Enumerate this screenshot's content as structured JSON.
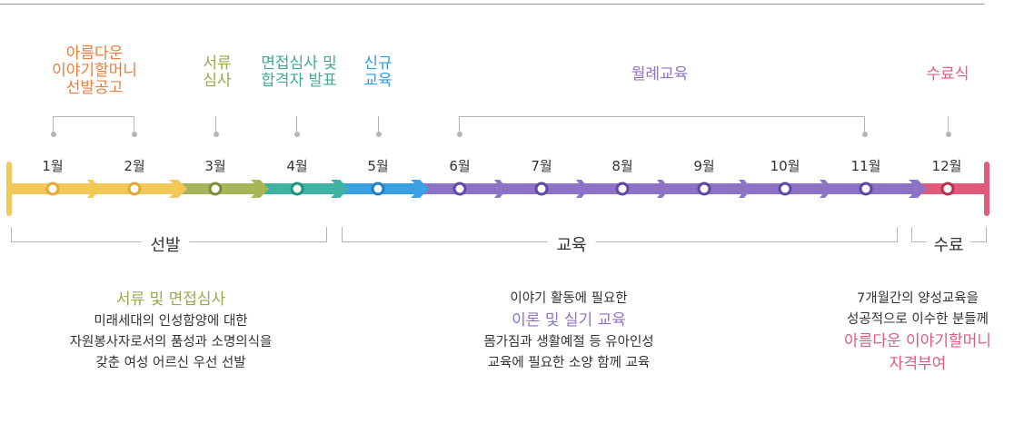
{
  "phases": [
    {
      "key": "selection-notice",
      "lines": [
        "아름다운",
        "이야기할머니",
        "선발공고"
      ],
      "color": "#f07c3c"
    },
    {
      "key": "document-review",
      "lines": [
        "서류",
        "심사"
      ],
      "color": "#9aa84a"
    },
    {
      "key": "interview",
      "lines": [
        "면접심사 및",
        "합격자 발표"
      ],
      "color": "#3aab9b"
    },
    {
      "key": "new-education",
      "lines": [
        "신규",
        "교육"
      ],
      "color": "#2e9de0"
    },
    {
      "key": "monthly-education",
      "lines": [
        "월례교육"
      ],
      "color": "#8d72c6"
    },
    {
      "key": "completion-ceremony",
      "lines": [
        "수료식"
      ],
      "color": "#e25b7d"
    }
  ],
  "months": [
    "1월",
    "2월",
    "3월",
    "4월",
    "5월",
    "6월",
    "7월",
    "8월",
    "9월",
    "10월",
    "11월",
    "12월"
  ],
  "timeline_colors": {
    "selection": "#f0c957",
    "document": "#a8b558",
    "interview": "#3fb3a3",
    "new_edu": "#3b9fe3",
    "monthly": "#8d72c6",
    "completion": "#e05a7a",
    "start_cap": "#f0c957",
    "end_cap": "#e05a7a"
  },
  "groups": {
    "selection": "선발",
    "education": "교육",
    "completion": "수료"
  },
  "descriptions": {
    "selection": {
      "highlight": "서류 및 면접심사",
      "highlight_color": "#9aa84a",
      "lines": [
        "미래세대의 인성함양에 대한",
        "자원봉사자로서의 품성과 소명의식을",
        "갖춘 여성 어르신 우선 선발"
      ]
    },
    "education": {
      "line1": "이야기 활동에 필요한",
      "highlight": "이론 및 실기 교육",
      "highlight_color": "#8d72c6",
      "lines": [
        "몸가짐과 생활예절 등 유아인성",
        "교육에 필요한 소양 함께 교육"
      ]
    },
    "completion": {
      "lines_top": [
        "7개월간의 양성교육을",
        "성공적으로 이수한 분들께"
      ],
      "highlight_lines": [
        "아름다운 이야기할머니",
        "자격부여"
      ],
      "highlight_color": "#e25b7d"
    }
  }
}
